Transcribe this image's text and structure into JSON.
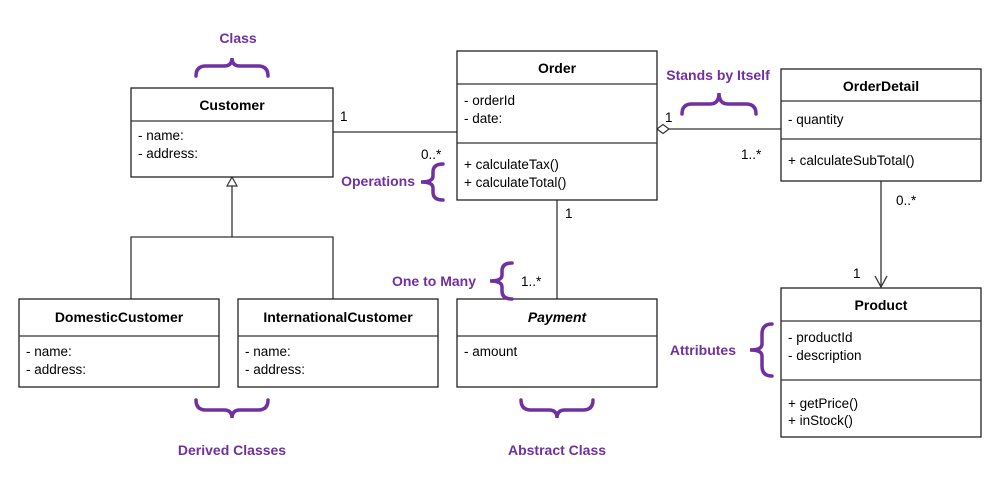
{
  "classes": {
    "customer": {
      "name": "Customer",
      "attributes": [
        "- name:",
        "- address:"
      ]
    },
    "order": {
      "name": "Order",
      "attributes": [
        "- orderId",
        "- date:"
      ],
      "operations": [
        "+ calculateTax()",
        "+ calculateTotal()"
      ]
    },
    "orderdetail": {
      "name": "OrderDetail",
      "attributes": [
        "- quantity"
      ],
      "operations": [
        "+ calculateSubTotal()"
      ]
    },
    "product": {
      "name": "Product",
      "attributes": [
        "- productId",
        "- description"
      ],
      "operations": [
        "+ getPrice()",
        "+ inStock()"
      ]
    },
    "payment": {
      "name": "Payment",
      "attributes": [
        "- amount"
      ]
    },
    "domestic": {
      "name": "DomesticCustomer",
      "attributes": [
        "- name:",
        "- address:"
      ]
    },
    "international": {
      "name": "InternationalCustomer",
      "attributes": [
        "- name:",
        "- address:"
      ]
    }
  },
  "multiplicities": {
    "customer_order_customer": "1",
    "customer_order_order": "0..*",
    "order_detail_order": "1",
    "order_detail_detail": "1..*",
    "order_payment_order": "1",
    "order_payment_payment": "1..*",
    "detail_product_detail": "0..*",
    "detail_product_product": "1"
  },
  "annotations": {
    "class": "Class",
    "operations": "Operations",
    "stands_by_itself": "Stands by Itself",
    "one_to_many": "One to Many",
    "attributes": "Attributes",
    "derived_classes": "Derived Classes",
    "abstract_class": "Abstract Class"
  },
  "colors": {
    "annotation": "#7030a0",
    "line": "#333333"
  }
}
